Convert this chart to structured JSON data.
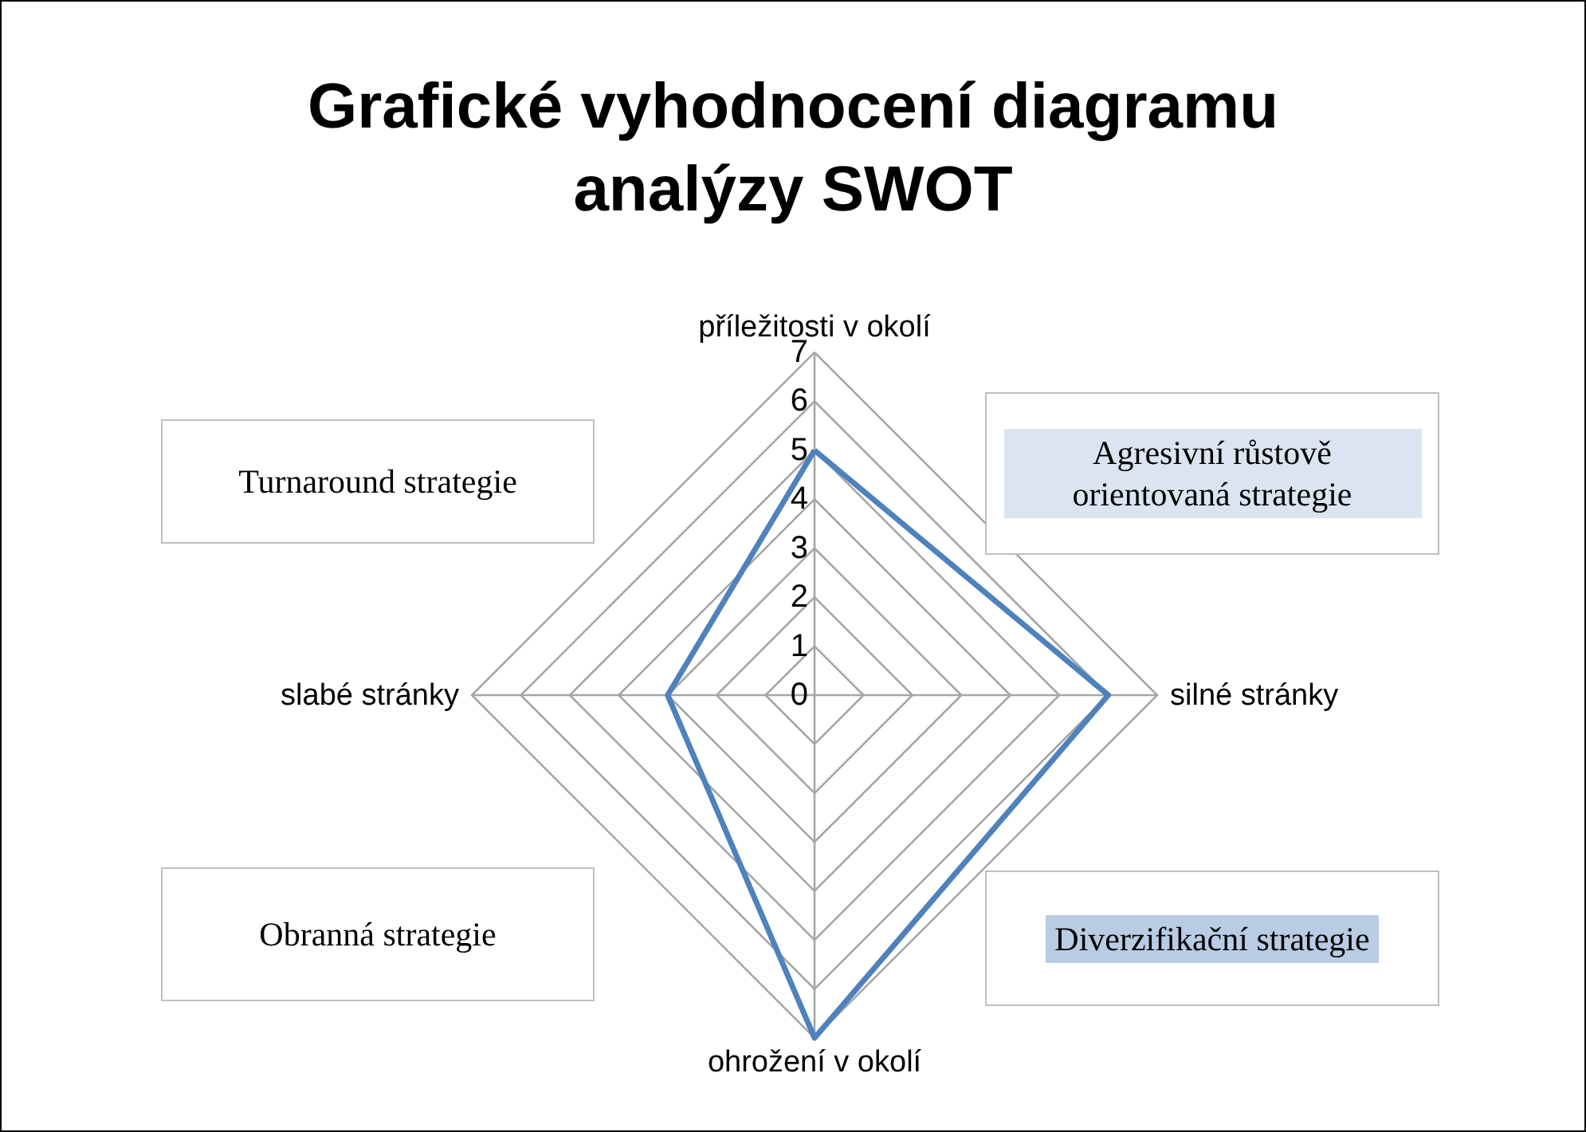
{
  "chart_data": {
    "type": "radar",
    "title": "Grafické vyhodnocení diagramu analýzy  SWOT",
    "categories": [
      "příležitosti v okolí",
      "silné stránky",
      "ohrožení v okolí",
      "slabé stránky"
    ],
    "series": [
      {
        "color": "#4f81bd",
        "values": [
          5,
          6,
          7,
          3
        ]
      }
    ],
    "ylim": [
      0,
      7
    ],
    "yticks": [
      0,
      1,
      2,
      3,
      4,
      5,
      6,
      7
    ],
    "grid": true,
    "legend": false,
    "marker": "none",
    "annotations": [
      "Turnaround strategie",
      "Agresivní růstově orientovaná strategie",
      "Obranná strategie",
      "Diverzifikační strategie"
    ]
  }
}
